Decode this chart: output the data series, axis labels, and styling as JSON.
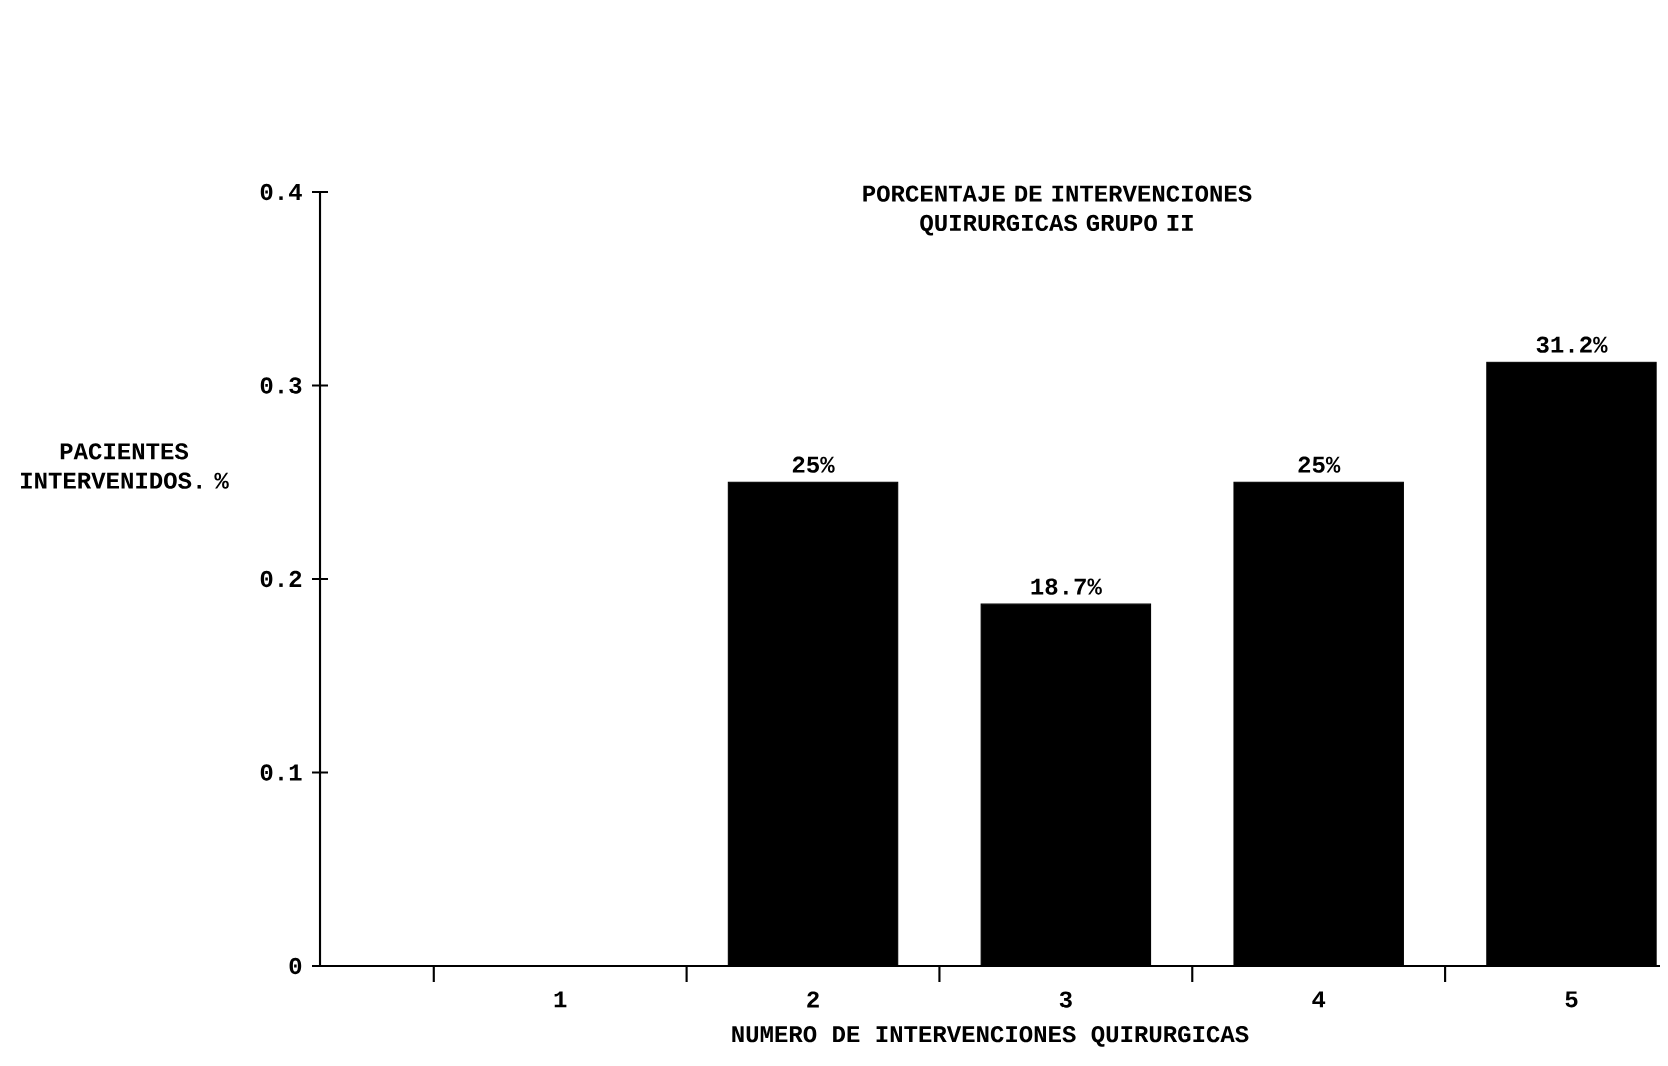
{
  "chart_data": {
    "type": "bar",
    "title": "PORCENTAJE DE INTERVENCIONES QUIRURGICAS GRUPO II",
    "xlabel": "NUMERO DE INTERVENCIONES QUIRURGICAS",
    "ylabel": "PACIENTES INTERVENIDOS. %",
    "categories": [
      "1",
      "2",
      "3",
      "4",
      "5"
    ],
    "values": [
      0,
      0.25,
      0.187,
      0.25,
      0.312
    ],
    "value_labels": [
      null,
      "25%",
      "18.7%",
      "25%",
      "31.2%"
    ],
    "color": "#000000",
    "ylim": [
      0,
      0.4
    ],
    "yticks": [
      0,
      0.1,
      0.2,
      0.3,
      0.4
    ]
  }
}
